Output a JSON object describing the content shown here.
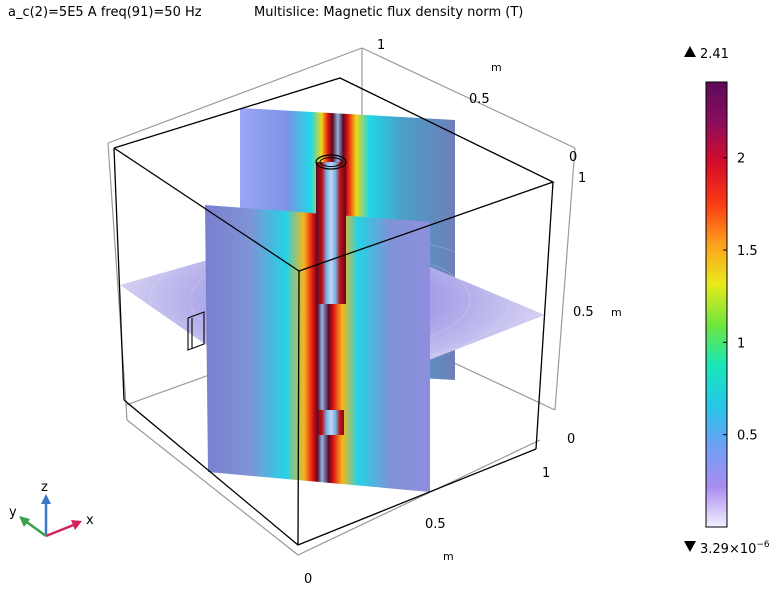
{
  "header": {
    "params": "a_c(2)=5E5 A freq(91)=50 Hz",
    "title": "Multislice: Magnetic flux density norm (T)"
  },
  "chart_data": {
    "type": "heatmap",
    "title": "Multislice: Magnetic flux density norm (T)",
    "params": "a_c(2)=5E5 A freq(91)=50 Hz",
    "quantity": "Magnetic flux density norm",
    "unit": "T",
    "slices": [
      "x",
      "y",
      "z"
    ],
    "axes": {
      "x": {
        "ticks": [
          "0",
          "0.5",
          "1"
        ],
        "unit": "m",
        "range": [
          0,
          1
        ]
      },
      "y": {
        "ticks": [
          "0",
          "0.5",
          "1"
        ],
        "unit": "m",
        "range": [
          0,
          1
        ]
      },
      "z": {
        "ticks": [
          "0",
          "0.5",
          "1"
        ],
        "unit": "m",
        "range": [
          0,
          1
        ]
      }
    },
    "triad": {
      "x": "x",
      "y": "y",
      "z": "z"
    },
    "colorbar": {
      "colormap": "rainbow",
      "max_label": "2.41",
      "min_label_base": "3.29×10",
      "min_label_exp": "−6",
      "range": [
        3.29e-06,
        2.41
      ],
      "ticks": [
        {
          "value": 0.5,
          "label": "0.5"
        },
        {
          "value": 1,
          "label": "1"
        },
        {
          "value": 1.5,
          "label": "1.5"
        },
        {
          "value": 2,
          "label": "2"
        }
      ],
      "colors": [
        "#f4f0ff",
        "#a98cf0",
        "#6f9ff5",
        "#25c7e8",
        "#18e7b8",
        "#6fe63c",
        "#e8ea1c",
        "#fca01c",
        "#fa3a14",
        "#d50c2a",
        "#8a0e5c",
        "#5c0a5a"
      ]
    }
  }
}
